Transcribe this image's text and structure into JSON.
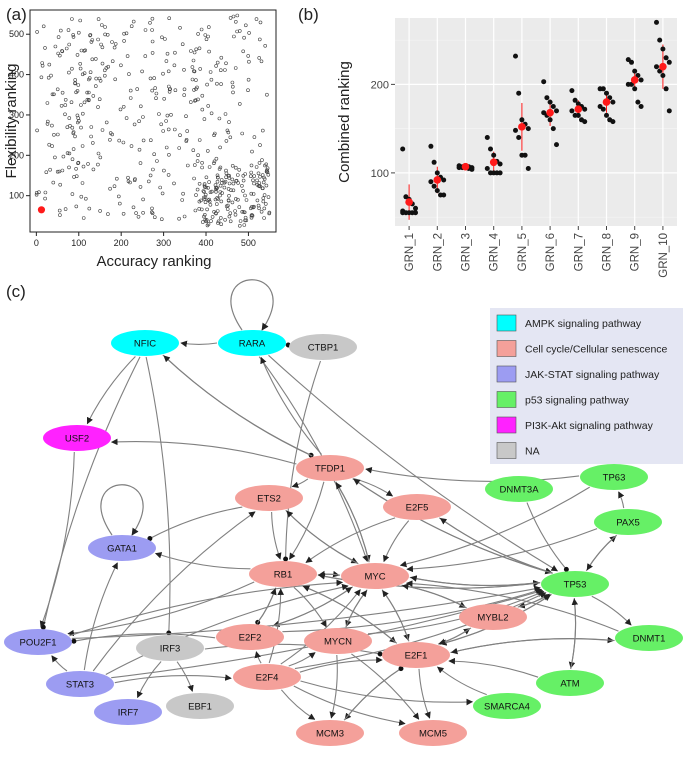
{
  "colors": {
    "ampk": "#00ffff",
    "cellcycle": "#f4a09a",
    "jakstat": "#9c9cf2",
    "p53": "#66f066",
    "pi3k": "#ff22ff",
    "na": "#c8c8c8",
    "highlight": "#ff1a1a",
    "panel_bg": "#ebebeb",
    "legend_bg": "#e4e6f3",
    "edge": "#808080"
  },
  "panels": {
    "a": "(a)",
    "b": "(b)",
    "c": "(c)"
  },
  "chart_data": [
    {
      "type": "scatter",
      "panel": "(a)",
      "xlabel": "Accuracy ranking",
      "ylabel": "Flexibility ranking",
      "xlim": [
        -15,
        565
      ],
      "ylim": [
        10,
        560
      ],
      "xticks": [
        0,
        100,
        200,
        300,
        400,
        500
      ],
      "yticks": [
        100,
        200,
        300,
        400,
        500
      ],
      "xtick_labels": [
        "0",
        "100",
        "200",
        "300",
        "400",
        "500"
      ],
      "ytick_labels": [
        "100",
        "200",
        "300",
        "400",
        "500"
      ],
      "n_points": 550,
      "point_style": "open circle",
      "highlight_point": {
        "x": 12,
        "y": 65,
        "color": "red"
      },
      "description_note": "cloud of ~550 networks; dense near x 400-550, y 30-150"
    },
    {
      "type": "dot",
      "panel": "(b)",
      "ylabel": "Combined ranking",
      "ylim": [
        40,
        275
      ],
      "yticks": [
        100,
        200
      ],
      "ytick_labels": [
        "100",
        "200"
      ],
      "categories": [
        "GRN_1",
        "GRN_2",
        "GRN_3",
        "GRN_4",
        "GRN_5",
        "GRN_6",
        "GRN_7",
        "GRN_8",
        "GRN_9",
        "GRN_10"
      ],
      "points": [
        [
          127,
          73,
          70,
          65,
          60,
          57,
          55,
          55,
          55,
          55,
          55
        ],
        [
          130,
          112,
          100,
          95,
          92,
          90,
          85,
          80,
          75,
          75
        ],
        [
          108,
          107,
          107,
          107,
          106,
          106,
          106,
          106,
          105,
          104
        ],
        [
          140,
          127,
          120,
          113,
          110,
          105,
          100,
          100,
          100,
          100
        ],
        [
          232,
          190,
          160,
          155,
          150,
          148,
          140,
          120,
          120,
          105
        ],
        [
          203,
          185,
          180,
          175,
          170,
          168,
          165,
          160,
          150,
          132
        ],
        [
          193,
          182,
          178,
          175,
          172,
          170,
          165,
          165,
          160,
          158
        ],
        [
          195,
          195,
          190,
          185,
          180,
          175,
          172,
          165,
          160,
          158
        ],
        [
          228,
          225,
          215,
          210,
          205,
          200,
          200,
          195,
          180,
          175
        ],
        [
          270,
          250,
          240,
          230,
          225,
          220,
          215,
          210,
          195,
          170
        ]
      ],
      "means": [
        67,
        92,
        107,
        112,
        152,
        168,
        172,
        180,
        205,
        220
      ],
      "sd": [
        20,
        15,
        1,
        12,
        27,
        15,
        10,
        12,
        12,
        25
      ],
      "mean_color": "red"
    },
    {
      "type": "network",
      "panel": "(c)",
      "legend": [
        {
          "label": "AMPK signaling pathway",
          "color": "#00ffff"
        },
        {
          "label": "Cell cycle/Cellular senescence",
          "color": "#f4a09a"
        },
        {
          "label": "JAK-STAT signaling pathway",
          "color": "#9c9cf2"
        },
        {
          "label": "p53 signaling pathway",
          "color": "#66f066"
        },
        {
          "label": "PI3K-Akt signaling pathway",
          "color": "#ff22ff"
        },
        {
          "label": "NA",
          "color": "#c8c8c8"
        }
      ],
      "nodes": [
        {
          "id": "NFIC",
          "group": "ampk"
        },
        {
          "id": "RARA",
          "group": "ampk"
        },
        {
          "id": "CTBP1",
          "group": "na"
        },
        {
          "id": "USF2",
          "group": "pi3k"
        },
        {
          "id": "TFDP1",
          "group": "cellcycle"
        },
        {
          "id": "ETS2",
          "group": "cellcycle"
        },
        {
          "id": "E2F5",
          "group": "cellcycle"
        },
        {
          "id": "DNMT3A",
          "group": "p53"
        },
        {
          "id": "TP63",
          "group": "p53"
        },
        {
          "id": "PAX5",
          "group": "p53"
        },
        {
          "id": "GATA1",
          "group": "jakstat"
        },
        {
          "id": "RB1",
          "group": "cellcycle"
        },
        {
          "id": "MYC",
          "group": "cellcycle"
        },
        {
          "id": "TP53",
          "group": "p53"
        },
        {
          "id": "POU2F1",
          "group": "jakstat"
        },
        {
          "id": "IRF3",
          "group": "na"
        },
        {
          "id": "E2F2",
          "group": "cellcycle"
        },
        {
          "id": "MYCN",
          "group": "cellcycle"
        },
        {
          "id": "MYBL2",
          "group": "cellcycle"
        },
        {
          "id": "E2F1",
          "group": "cellcycle"
        },
        {
          "id": "DNMT1",
          "group": "p53"
        },
        {
          "id": "STAT3",
          "group": "jakstat"
        },
        {
          "id": "E2F4",
          "group": "cellcycle"
        },
        {
          "id": "ATM",
          "group": "p53"
        },
        {
          "id": "SMARCA4",
          "group": "p53"
        },
        {
          "id": "IRF7",
          "group": "jakstat"
        },
        {
          "id": "EBF1",
          "group": "na"
        },
        {
          "id": "MCM3",
          "group": "cellcycle"
        },
        {
          "id": "MCM5",
          "group": "cellcycle"
        }
      ],
      "edges": [
        [
          "RARA",
          "CTBP1",
          "inhibit"
        ],
        [
          "RARA",
          "RARA",
          "activate"
        ],
        [
          "RARA",
          "NFIC",
          "activate"
        ],
        [
          "NFIC",
          "USF2",
          "activate"
        ],
        [
          "NFIC",
          "IRF3",
          "inhibit"
        ],
        [
          "NFIC",
          "TFDP1",
          "inhibit"
        ],
        [
          "NFIC",
          "POU2F1",
          "inhibit"
        ],
        [
          "RARA",
          "MYC",
          "activate"
        ],
        [
          "RARA",
          "TP53",
          "activate"
        ],
        [
          "CTBP1",
          "RB1",
          "inhibit"
        ],
        [
          "TFDP1",
          "USF2",
          "activate"
        ],
        [
          "TFDP1",
          "NFIC",
          "activate"
        ],
        [
          "TFDP1",
          "RARA",
          "activate"
        ],
        [
          "TFDP1",
          "RB1",
          "activate"
        ],
        [
          "TFDP1",
          "MYC",
          "activate"
        ],
        [
          "TFDP1",
          "E2F5",
          "activate"
        ],
        [
          "TFDP1",
          "TP53",
          "activate"
        ],
        [
          "TP63",
          "TFDP1",
          "activate"
        ],
        [
          "TP53",
          "TFDP1",
          "activate"
        ],
        [
          "PAX5",
          "TP63",
          "activate"
        ],
        [
          "TP53",
          "PAX5",
          "activate"
        ],
        [
          "PAX5",
          "TP53",
          "activate"
        ],
        [
          "DNMT3A",
          "TP53",
          "inhibit"
        ],
        [
          "ETS2",
          "RB1",
          "activate"
        ],
        [
          "ETS2",
          "MYC",
          "activate"
        ],
        [
          "ETS2",
          "GATA1",
          "inhibit"
        ],
        [
          "E2F5",
          "MYC",
          "activate"
        ],
        [
          "E2F5",
          "RB1",
          "activate"
        ],
        [
          "E2F5",
          "TP53",
          "activate"
        ],
        [
          "RB1",
          "GATA1",
          "activate"
        ],
        [
          "RB1",
          "POU2F1",
          "activate"
        ],
        [
          "RB1",
          "E2F2",
          "inhibit"
        ],
        [
          "RB1",
          "MYC",
          "activate"
        ],
        [
          "RB1",
          "TP53",
          "activate"
        ],
        [
          "RB1",
          "MYCN",
          "activate"
        ],
        [
          "RB1",
          "E2F1",
          "activate"
        ],
        [
          "MYC",
          "RB1",
          "activate"
        ],
        [
          "MYC",
          "TP53",
          "activate"
        ],
        [
          "MYC",
          "E2F2",
          "activate"
        ],
        [
          "MYC",
          "MYCN",
          "activate"
        ],
        [
          "MYC",
          "E2F1",
          "activate"
        ],
        [
          "MYC",
          "MYBL2",
          "activate"
        ],
        [
          "MYC",
          "TFDP1",
          "activate"
        ],
        [
          "MYC",
          "ETS2",
          "activate"
        ],
        [
          "TP53",
          "MYC",
          "activate"
        ],
        [
          "TP53",
          "DNMT1",
          "activate"
        ],
        [
          "TP53",
          "ATM",
          "activate"
        ],
        [
          "TP53",
          "E2F1",
          "activate"
        ],
        [
          "TP53",
          "MYBL2",
          "activate"
        ],
        [
          "TP53",
          "E2F5",
          "activate"
        ],
        [
          "TP53",
          "RB1",
          "activate"
        ],
        [
          "STAT3",
          "POU2F1",
          "activate"
        ],
        [
          "STAT3",
          "ETS2",
          "activate"
        ],
        [
          "STAT3",
          "MYC",
          "activate"
        ],
        [
          "STAT3",
          "TP53",
          "activate"
        ],
        [
          "STAT3",
          "GATA1",
          "activate"
        ],
        [
          "POU2F1",
          "TP53",
          "activate"
        ],
        [
          "POU2F1",
          "MYC",
          "activate"
        ],
        [
          "IRF3",
          "IRF7",
          "activate"
        ],
        [
          "IRF3",
          "EBF1",
          "activate"
        ],
        [
          "IRF3",
          "E2F1",
          "inhibit"
        ],
        [
          "E2F2",
          "RB1",
          "activate"
        ],
        [
          "E2F2",
          "MYC",
          "activate"
        ],
        [
          "E2F2",
          "TP53",
          "activate"
        ],
        [
          "MYCN",
          "MYC",
          "activate"
        ],
        [
          "MYCN",
          "TP53",
          "activate"
        ],
        [
          "MYCN",
          "MCM3",
          "activate"
        ],
        [
          "MYCN",
          "MCM5",
          "activate"
        ],
        [
          "E2F1",
          "MYC",
          "activate"
        ],
        [
          "E2F1",
          "TP53",
          "activate"
        ],
        [
          "E2F1",
          "MCM3",
          "activate"
        ],
        [
          "E2F1",
          "MCM5",
          "activate"
        ],
        [
          "E2F1",
          "DNMT1",
          "activate"
        ],
        [
          "E2F1",
          "MYBL2",
          "activate"
        ],
        [
          "E2F1",
          "RB1",
          "activate"
        ],
        [
          "E2F4",
          "E2F2",
          "activate"
        ],
        [
          "E2F4",
          "MYCN",
          "activate"
        ],
        [
          "E2F4",
          "E2F1",
          "activate"
        ],
        [
          "E2F4",
          "MCM3",
          "activate"
        ],
        [
          "E2F4",
          "MCM5",
          "activate"
        ],
        [
          "E2F4",
          "SMARCA4",
          "activate"
        ],
        [
          "E2F4",
          "MYC",
          "activate"
        ],
        [
          "E2F4",
          "TP53",
          "activate"
        ],
        [
          "E2F4",
          "RB1",
          "activate"
        ],
        [
          "MYBL2",
          "TP53",
          "activate"
        ],
        [
          "MYBL2",
          "E2F1",
          "activate"
        ],
        [
          "MYBL2",
          "MYC",
          "activate"
        ],
        [
          "ATM",
          "TP53",
          "activate"
        ],
        [
          "ATM",
          "E2F1",
          "activate"
        ],
        [
          "DNMT1",
          "E2F1",
          "activate"
        ],
        [
          "DNMT1",
          "MYC",
          "activate"
        ],
        [
          "SMARCA4",
          "E2F1",
          "activate"
        ],
        [
          "GATA1",
          "GATA1",
          "activate"
        ],
        [
          "USF2",
          "POU2F1",
          "activate"
        ],
        [
          "PAX5",
          "MYC",
          "activate"
        ],
        [
          "TP63",
          "MYC",
          "activate"
        ],
        [
          "TFDP1",
          "ETS2",
          "activate"
        ],
        [
          "MCM3",
          "E2F1",
          "inhibit"
        ],
        [
          "E2F2",
          "POU2F1",
          "inhibit"
        ],
        [
          "STAT3",
          "E2F4",
          "activate"
        ]
      ]
    }
  ]
}
